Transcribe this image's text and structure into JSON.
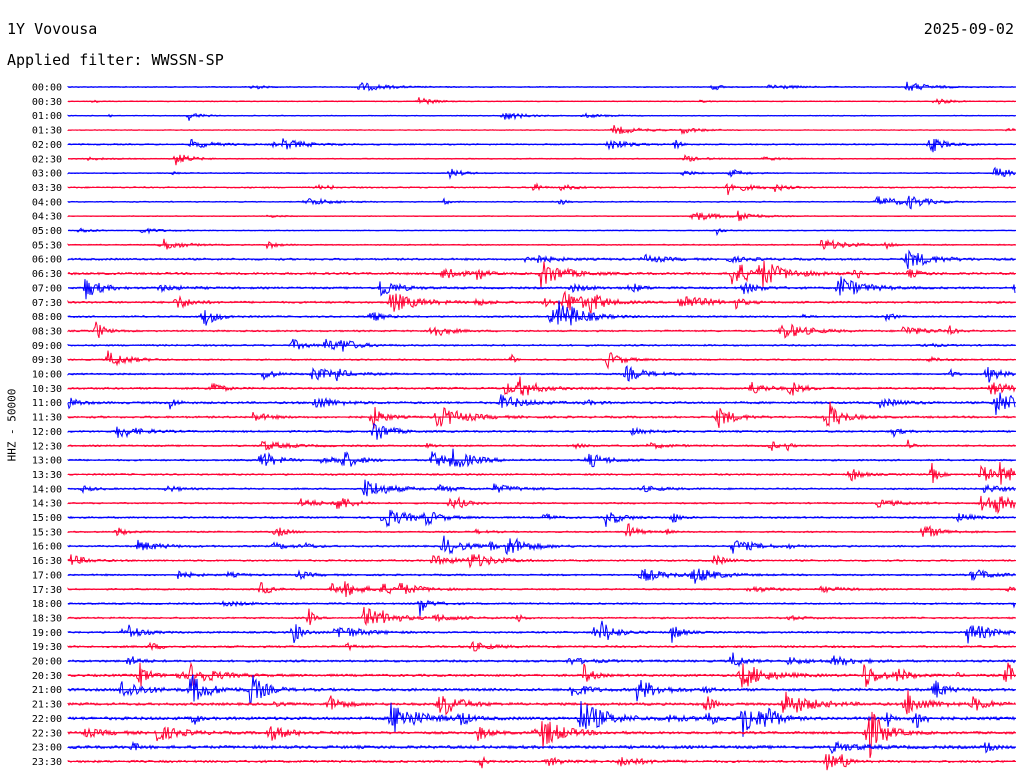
{
  "header": {
    "station": "1Y Vovousa",
    "date": "2025-09-02",
    "filter": "Applied filter: WWSSN-SP"
  },
  "chart_data": {
    "type": "line",
    "title": "1Y Vovousa",
    "ylabel": "HHZ - 50000",
    "row_labels": [
      "00:00",
      "00:30",
      "01:00",
      "01:30",
      "02:00",
      "02:30",
      "03:00",
      "03:30",
      "04:00",
      "04:30",
      "05:00",
      "05:30",
      "06:00",
      "06:30",
      "07:00",
      "07:30",
      "08:00",
      "08:30",
      "09:00",
      "09:30",
      "10:00",
      "10:30",
      "11:00",
      "11:30",
      "12:00",
      "12:30",
      "13:00",
      "13:30",
      "14:00",
      "14:30",
      "15:00",
      "15:30",
      "16:00",
      "16:30",
      "17:00",
      "17:30",
      "18:00",
      "18:30",
      "19:00",
      "19:30",
      "20:00",
      "20:30",
      "21:00",
      "21:30",
      "22:00",
      "22:30",
      "23:00",
      "23:30"
    ],
    "colors": [
      "#0000ff",
      "#ff0033"
    ],
    "baseline_color": "#0000ff",
    "noise_level": [
      0.6,
      0.5,
      0.5,
      0.5,
      0.8,
      0.6,
      0.6,
      0.8,
      0.6,
      0.5,
      0.5,
      0.7,
      1.2,
      1.3,
      1.2,
      1.2,
      1.0,
      1.0,
      1.0,
      0.9,
      1.0,
      1.2,
      1.3,
      1.2,
      1.1,
      1.0,
      1.0,
      1.0,
      1.0,
      0.9,
      1.0,
      0.9,
      1.0,
      1.0,
      1.0,
      0.9,
      1.0,
      1.0,
      1.1,
      1.2,
      1.3,
      1.4,
      1.6,
      1.5,
      1.8,
      1.5,
      1.8,
      1.3
    ]
  }
}
